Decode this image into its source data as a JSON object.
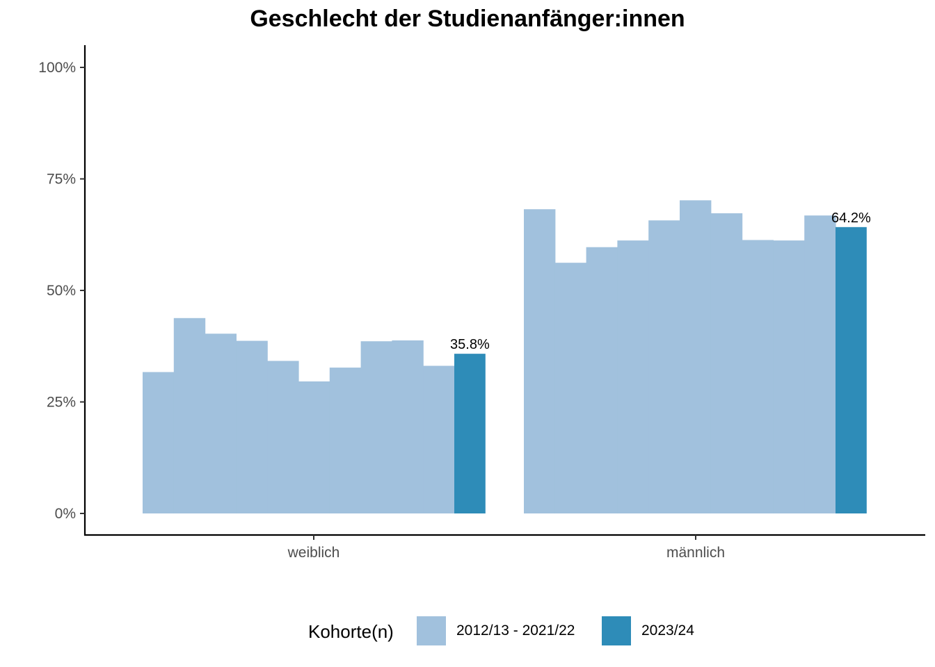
{
  "chart_data": {
    "type": "bar",
    "title": "Geschlecht der Studienanfänger:innen",
    "xlabel": "",
    "ylabel": "",
    "ylim": [
      0,
      1.05
    ],
    "y_ticks": [
      0,
      0.25,
      0.5,
      0.75,
      1.0
    ],
    "y_tick_labels": [
      "0%",
      "25%",
      "50%",
      "75%",
      "100%"
    ],
    "categories": [
      "weiblich",
      "männlich"
    ],
    "legend_title": "Kohorte(n)",
    "series": [
      {
        "name": "2012/13 - 2021/22",
        "color": "#a1c1dd",
        "values_by_category": [
          [
            0.317,
            0.438,
            0.403,
            0.387,
            0.342,
            0.296,
            0.327,
            0.386,
            0.388,
            0.331
          ],
          [
            0.682,
            0.562,
            0.597,
            0.612,
            0.657,
            0.702,
            0.673,
            0.613,
            0.612,
            0.668
          ]
        ]
      },
      {
        "name": "2023/24",
        "color": "#2e8cb8",
        "values": [
          0.358,
          0.642
        ],
        "labels": [
          "35.8%",
          "64.2%"
        ]
      }
    ]
  }
}
